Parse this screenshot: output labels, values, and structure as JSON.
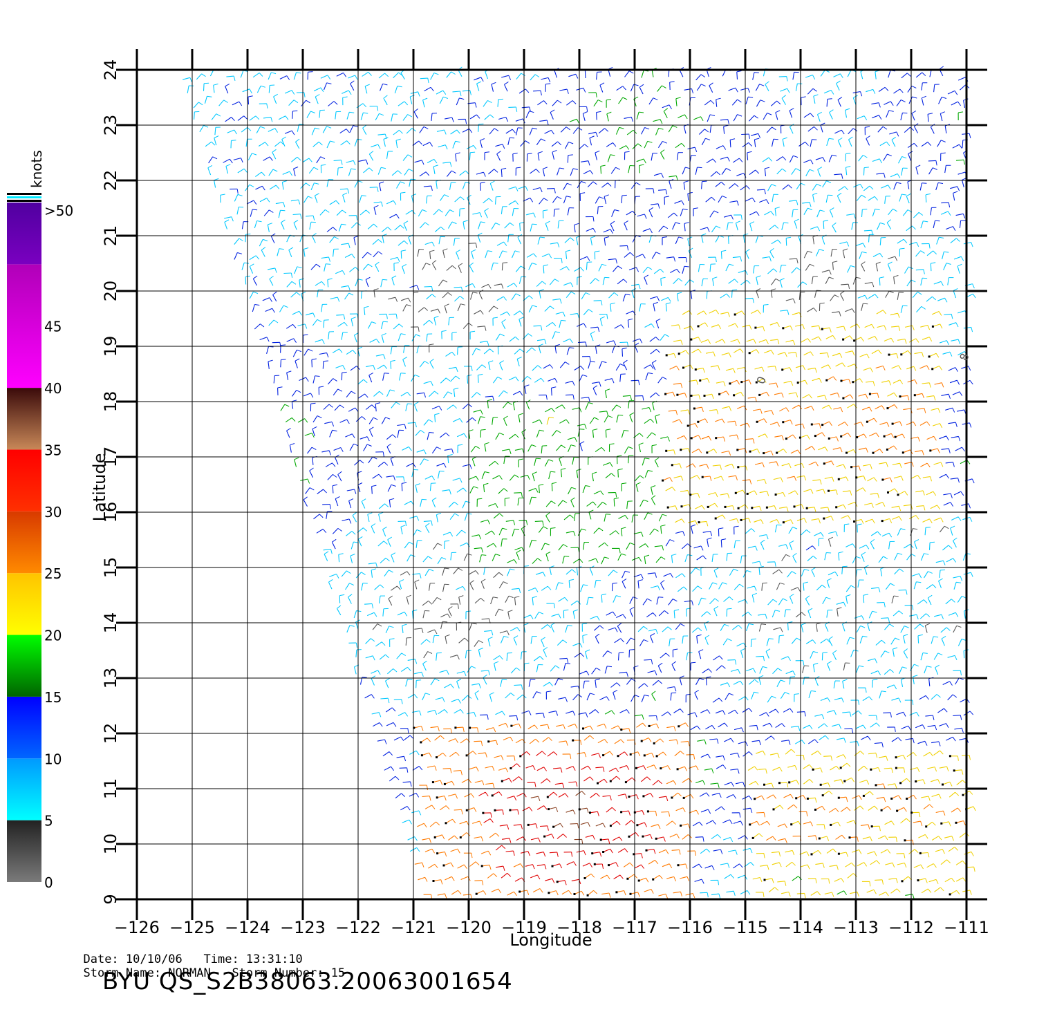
{
  "map": {
    "lon_range": [
      -126,
      -111
    ],
    "lat_range": [
      9,
      24
    ],
    "x_ticks": [
      "-126",
      "-125",
      "-124",
      "-123",
      "-122",
      "-121",
      "-120",
      "-119",
      "-118",
      "-117",
      "-116",
      "-115",
      "-114",
      "-113",
      "-112",
      "-111"
    ],
    "y_ticks": [
      "24",
      "23",
      "22",
      "21",
      "20",
      "19",
      "18",
      "17",
      "16",
      "15",
      "14",
      "13",
      "12",
      "11",
      "10",
      "9"
    ],
    "xlabel": "Longitude",
    "ylabel": "Latitude",
    "grid": true,
    "content": "QuikSCAT wind vector barbs over the eastern Pacific; swath edge slanting from about -125 at 24N to about -121 at 9N; strong winds (25-40 knots) south of 12N between -121 and -116, moderate 20-30 knots band 16-19N east of -117"
  },
  "legend": {
    "title": "knots",
    "labels": [
      ">50",
      "45",
      "40",
      "35",
      "30",
      "25",
      "20",
      "15",
      "10",
      "5",
      "0"
    ],
    "bands": [
      {
        "from": 0,
        "to": 5,
        "color": "#6f6f6f"
      },
      {
        "from": 5,
        "to": 10,
        "color": "#00e8ff"
      },
      {
        "from": 10,
        "to": 15,
        "color": "#0033ff"
      },
      {
        "from": 15,
        "to": 20,
        "color": "#00b400"
      },
      {
        "from": 20,
        "to": 25,
        "color": "#ffd000"
      },
      {
        "from": 25,
        "to": 30,
        "color": "#ff5a00"
      },
      {
        "from": 30,
        "to": 35,
        "color": "#ff1800"
      },
      {
        "from": 35,
        "to": 40,
        "color": "#b06a40"
      },
      {
        "from": 40,
        "to": 50,
        "color": "#ff00ff"
      },
      {
        "from": 50,
        "to": 55,
        "color": "#6a00c8"
      }
    ]
  },
  "footer": {
    "date_label": "Date: 10/10/06",
    "time_label": "Time: 13:31:10",
    "storm_name_label": "Storm Name: NORMAN",
    "storm_number_label": "Storm Number: 15",
    "product_id": "BYU  QS_S2B38063.20063001654"
  },
  "annotations": [
    "0",
    "8"
  ]
}
